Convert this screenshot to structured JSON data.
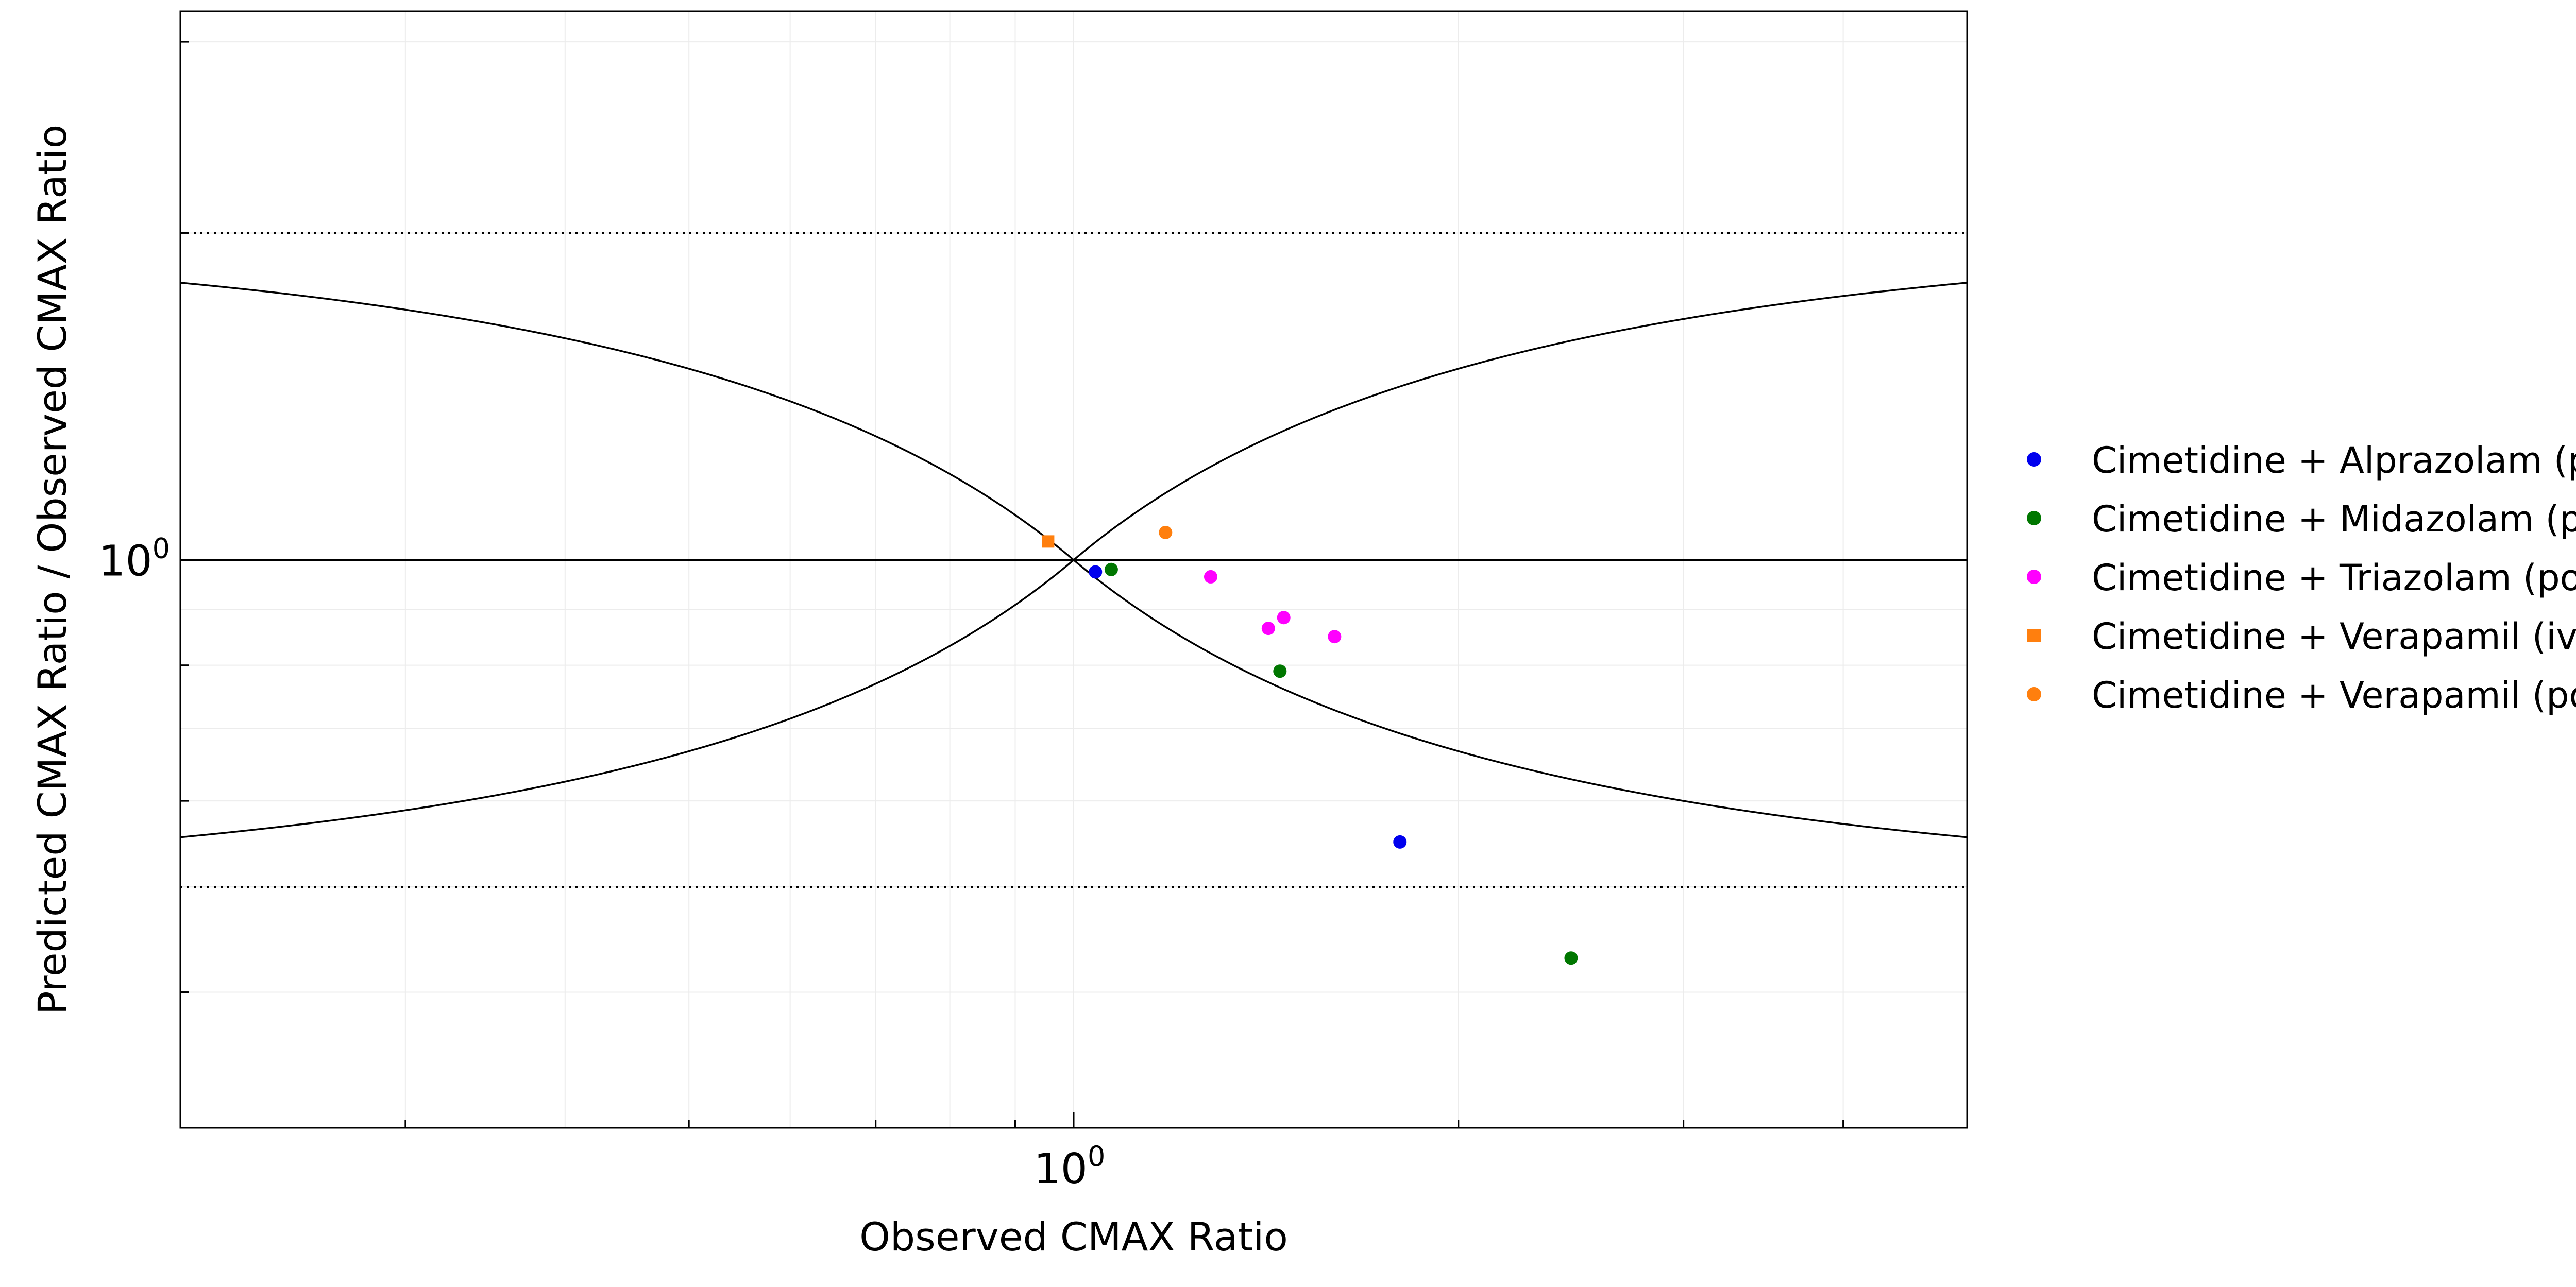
{
  "chart_data": {
    "type": "scatter",
    "xlabel": "Observed CMAX Ratio",
    "ylabel": "Predicted CMAX Ratio / Observed CMAX Ratio",
    "x_scale": "log",
    "y_scale": "log",
    "xlim": [
      0.2,
      5.0
    ],
    "ylim": [
      0.3,
      3.2
    ],
    "x_ticks": [
      {
        "base": "10",
        "exp": "0",
        "value": 1
      }
    ],
    "y_ticks": [
      {
        "base": "10",
        "exp": "0",
        "value": 1
      }
    ],
    "grid": true,
    "legend_position": "right",
    "reference_lines": [
      {
        "name": "identity",
        "type": "horizontal",
        "y": 1,
        "style": "solid"
      },
      {
        "name": "upper-2fold",
        "type": "horizontal",
        "y": 2,
        "style": "dotted"
      },
      {
        "name": "lower-2fold",
        "type": "horizontal",
        "y": 0.5,
        "style": "dotted"
      },
      {
        "name": "guest-limit-upper",
        "type": "curve",
        "style": "solid"
      },
      {
        "name": "guest-limit-lower",
        "type": "curve",
        "style": "solid"
      }
    ],
    "series": [
      {
        "name": "Cimetidine + Alprazolam (po)",
        "color": "#0000ee",
        "marker": "circle",
        "points": [
          {
            "x": 1.04,
            "y": 0.975
          },
          {
            "x": 1.8,
            "y": 0.55
          }
        ]
      },
      {
        "name": "Cimetidine + Midazolam (po)",
        "color": "#007700",
        "marker": "circle",
        "points": [
          {
            "x": 1.07,
            "y": 0.98
          },
          {
            "x": 1.45,
            "y": 0.79
          },
          {
            "x": 2.45,
            "y": 0.43
          }
        ]
      },
      {
        "name": "Cimetidine + Triazolam (po)",
        "color": "#ff00ff",
        "marker": "circle",
        "points": [
          {
            "x": 1.28,
            "y": 0.965
          },
          {
            "x": 1.42,
            "y": 0.865
          },
          {
            "x": 1.46,
            "y": 0.885
          },
          {
            "x": 1.6,
            "y": 0.85
          }
        ]
      },
      {
        "name": "Cimetidine + Verapamil (iv)",
        "color": "#ff7f0e",
        "marker": "square",
        "points": [
          {
            "x": 0.955,
            "y": 1.04
          }
        ]
      },
      {
        "name": "Cimetidine + Verapamil (po)",
        "color": "#ff7f0e",
        "marker": "circle",
        "points": [
          {
            "x": 1.18,
            "y": 1.06
          }
        ]
      }
    ]
  }
}
